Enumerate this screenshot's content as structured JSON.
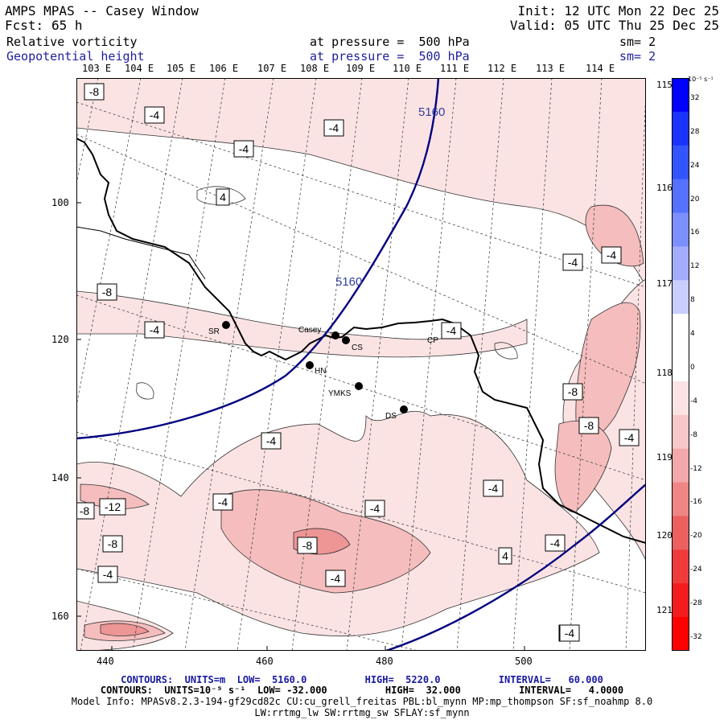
{
  "header": {
    "title": "AMPS MPAS -- Casey Window",
    "fcst_label": "Fcst:",
    "fcst_value": "65 h",
    "init": "Init: 12 UTC Mon 22 Dec 25",
    "valid": "Valid: 05 UTC Thu 25 Dec 25"
  },
  "fields": [
    {
      "name": "Relative vorticity",
      "pressure": "at pressure =  500 hPa",
      "sm": "sm= 2",
      "color": "#000000"
    },
    {
      "name": "Geopotential height",
      "pressure": "at pressure =  500 hPa",
      "sm": "sm= 2",
      "color": "#2020a0"
    }
  ],
  "top_longitudes": [
    "103 E",
    "104 E",
    "105 E",
    "106 E",
    "107 E",
    "108 E",
    "109 E",
    "110 E",
    "111 E",
    "112 E",
    "113 E",
    "114 E"
  ],
  "right_longitudes": [
    "115 E",
    "116 E",
    "117 E",
    "118 E",
    "119 E",
    "120 E",
    "121 E"
  ],
  "y_ticks": [
    "100",
    "120",
    "140",
    "160"
  ],
  "x_ticks": [
    "440",
    "460",
    "480",
    "500"
  ],
  "colorbar": {
    "units": "10⁻⁵ s⁻¹",
    "labels": [
      "32",
      "28",
      "24",
      "20",
      "16",
      "12",
      "8",
      "4",
      "0",
      "-4",
      "-8",
      "-12",
      "-16",
      "-20",
      "-24",
      "-28",
      "-32"
    ],
    "colors": [
      "#0000ff",
      "#1a33ff",
      "#3355ff",
      "#5572ff",
      "#7c8fff",
      "#a3adff",
      "#c9ceff",
      "#ffffff",
      "#ffffff",
      "#fbe3e3",
      "#f8c8c8",
      "#f3a9a9",
      "#ef8585",
      "#ec6060",
      "#ef3b3b",
      "#f31c1c",
      "#ff0000"
    ]
  },
  "stations": [
    {
      "name": "SR"
    },
    {
      "name": "Casey"
    },
    {
      "name": "CS"
    },
    {
      "name": "HN"
    },
    {
      "name": "YMKS"
    },
    {
      "name": "DS"
    },
    {
      "name": "CP"
    }
  ],
  "contour_labels": {
    "height": [
      "5160",
      "5160"
    ],
    "vorticity": [
      "-8",
      "-4",
      "-4",
      "-4",
      "4",
      "-4",
      "-4",
      "-8",
      "-4",
      "-4",
      "-8",
      "-8",
      "-4",
      "-4",
      "-4",
      "-4",
      "-8",
      "-12",
      "-8",
      "-8",
      "-4",
      "4",
      "-4",
      "-4",
      "-4",
      "-4",
      "-4"
    ]
  },
  "footer": {
    "line1": "CONTOURS:  UNITS=m  LOW=  5160.0          HIGH=  5220.0          INTERVAL=   60.000",
    "line2": "CONTOURS:  UNITS=10⁻⁵ s⁻¹  LOW= -32.000          HIGH=  32.000          INTERVAL=   4.0000",
    "line3": "Model Info: MPASv8.2.3-194-gf29cd82c CU:cu_grell_freitas PBL:bl_mynn MP:mp_thompson SF:sf_noahmp 8.0",
    "line4": "LW:rrtmg_lw SW:rrtmg_sw SFLAY:sf_mynn"
  }
}
